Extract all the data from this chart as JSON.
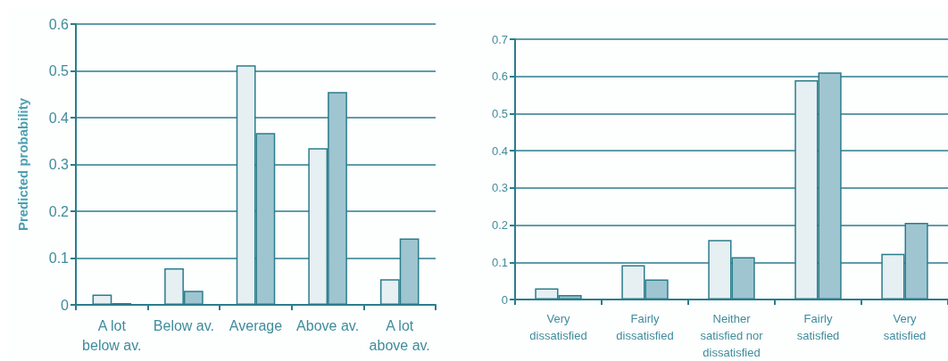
{
  "chart_data": [
    {
      "type": "bar",
      "ylabel": "Predicted probability",
      "categories": [
        "A lot\nbelow av.",
        "Below av.",
        "Average",
        "Above av.",
        "A lot\nabove av."
      ],
      "series": [
        {
          "color": "#e6eff2",
          "values": [
            0.022,
            0.078,
            0.512,
            0.335,
            0.055
          ]
        },
        {
          "color": "#9fc5d0",
          "values": [
            0.004,
            0.03,
            0.367,
            0.455,
            0.142
          ]
        }
      ],
      "ylim": [
        0,
        0.6
      ],
      "yticks": [
        0,
        0.1,
        0.2,
        0.3,
        0.4,
        0.5,
        0.6
      ],
      "grid": "y"
    },
    {
      "type": "bar",
      "categories": [
        "Very\ndissatisfied",
        "Fairly\ndissatisfied",
        "Neither\nsatisfied nor\ndissatisfied",
        "Fairly\nsatisfied",
        "Very\nsatisfied"
      ],
      "series": [
        {
          "color": "#e6eff2",
          "values": [
            0.03,
            0.092,
            0.16,
            0.59,
            0.123
          ]
        },
        {
          "color": "#9fc5d0",
          "values": [
            0.012,
            0.054,
            0.114,
            0.611,
            0.206
          ]
        }
      ],
      "ylim": [
        0,
        0.7
      ],
      "yticks": [
        0,
        0.1,
        0.2,
        0.3,
        0.4,
        0.5,
        0.6,
        0.7
      ],
      "grid": "y"
    }
  ]
}
